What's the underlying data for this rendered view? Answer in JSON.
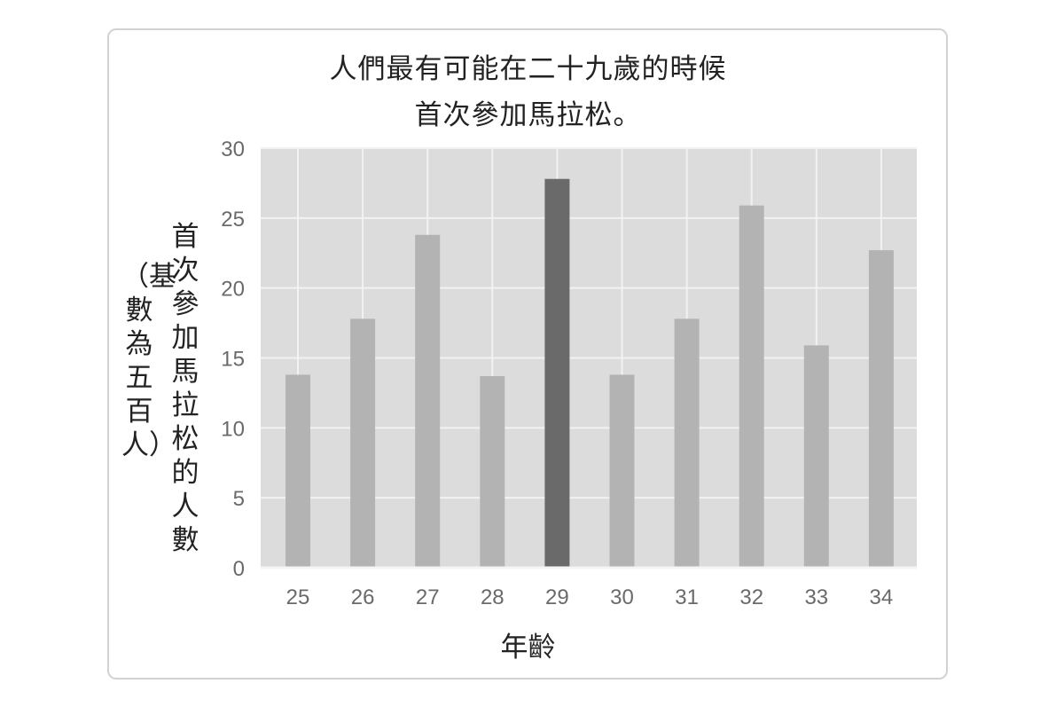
{
  "chart_data": {
    "type": "bar",
    "title_line1": "人們最有可能在二十九歲的時候",
    "title_line2": "首次參加馬拉松。",
    "xlabel": "年齡",
    "ylabel": "首次參加馬拉松的人數",
    "ylabel_sub": "（基數為五百人）",
    "categories": [
      "25",
      "26",
      "27",
      "28",
      "29",
      "30",
      "31",
      "32",
      "33",
      "34"
    ],
    "values": [
      13.8,
      17.8,
      23.8,
      13.7,
      27.8,
      13.8,
      17.8,
      25.9,
      15.9,
      22.7
    ],
    "highlight_index": 4,
    "ylim": [
      0,
      30
    ],
    "yticks": [
      0,
      5,
      10,
      15,
      20,
      25,
      30
    ],
    "grid": true,
    "colors": {
      "bar": "#b3b3b3",
      "highlight": "#6b6a6a",
      "plot_bg": "#dcdcdc",
      "grid": "#f2f2f2"
    }
  }
}
